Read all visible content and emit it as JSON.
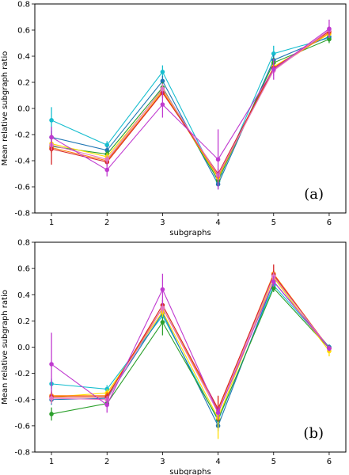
{
  "chart_data": [
    {
      "type": "line",
      "panel_label": "(a)",
      "xlabel": "subgraphs",
      "ylabel": "Mean relative subgraph ratio",
      "ylim": [
        -0.8,
        0.8
      ],
      "xlim": [
        0.7,
        6.3
      ],
      "x": [
        1,
        2,
        3,
        4,
        5,
        6
      ],
      "x_tick_labels": [
        "1",
        "2",
        "3",
        "4",
        "5",
        "6"
      ],
      "y_ticks": [
        -0.8,
        -0.6,
        -0.4,
        -0.2,
        0.0,
        0.2,
        0.4,
        0.6,
        0.8
      ],
      "y_tick_labels": [
        "-0.8",
        "-0.6",
        "-0.4",
        "-0.2",
        "0.0",
        "0.2",
        "0.4",
        "0.6",
        "0.8"
      ],
      "grid": false,
      "series": [
        {
          "color": "#17becf",
          "values": [
            -0.09,
            -0.28,
            0.28,
            -0.56,
            0.42,
            0.54
          ],
          "err": [
            0.1,
            0.03,
            0.05,
            0.04,
            0.06,
            0.03
          ]
        },
        {
          "color": "#1f77b4",
          "values": [
            -0.22,
            -0.32,
            0.21,
            -0.58,
            0.37,
            0.55
          ],
          "err": [
            0.05,
            0.03,
            0.04,
            0.04,
            0.04,
            0.03
          ]
        },
        {
          "color": "#2ca02c",
          "values": [
            -0.29,
            -0.35,
            0.16,
            -0.55,
            0.35,
            0.53
          ],
          "err": [
            0.04,
            0.03,
            0.04,
            0.04,
            0.04,
            0.03
          ]
        },
        {
          "color": "#ffdd00",
          "values": [
            -0.27,
            -0.37,
            0.14,
            -0.53,
            0.32,
            0.57
          ],
          "err": [
            0.04,
            0.03,
            0.04,
            0.04,
            0.04,
            0.03
          ]
        },
        {
          "color": "#ff7f0e",
          "values": [
            -0.3,
            -0.4,
            0.13,
            -0.52,
            0.3,
            0.58
          ],
          "err": [
            0.04,
            0.03,
            0.04,
            0.04,
            0.04,
            0.03
          ]
        },
        {
          "color": "#d62728",
          "values": [
            -0.31,
            -0.41,
            0.12,
            -0.5,
            0.31,
            0.59
          ],
          "err": [
            0.12,
            0.03,
            0.04,
            0.04,
            0.04,
            0.03
          ]
        },
        {
          "color": "#e377c2",
          "values": [
            -0.28,
            -0.39,
            0.15,
            -0.51,
            0.29,
            0.6
          ],
          "err": [
            0.04,
            0.03,
            0.04,
            0.04,
            0.04,
            0.03
          ]
        },
        {
          "color": "#c03ad0",
          "values": [
            -0.22,
            -0.47,
            0.03,
            -0.39,
            0.3,
            0.61
          ],
          "err": [
            0.08,
            0.05,
            0.1,
            0.23,
            0.08,
            0.07
          ]
        }
      ]
    },
    {
      "type": "line",
      "panel_label": "(b)",
      "xlabel": "subgraphs",
      "ylabel": "Mean relative subgraph ratio",
      "ylim": [
        -0.8,
        0.8
      ],
      "xlim": [
        0.7,
        6.3
      ],
      "x": [
        1,
        2,
        3,
        4,
        5,
        6
      ],
      "x_tick_labels": [
        "1",
        "2",
        "3",
        "4",
        "5",
        "6"
      ],
      "y_ticks": [
        -0.8,
        -0.6,
        -0.4,
        -0.2,
        0.0,
        0.2,
        0.4,
        0.6,
        0.8
      ],
      "y_tick_labels": [
        "-0.8",
        "-0.6",
        "-0.4",
        "-0.2",
        "0.0",
        "0.2",
        "0.4",
        "0.6",
        "0.8"
      ],
      "grid": false,
      "series": [
        {
          "color": "#17becf",
          "values": [
            -0.28,
            -0.32,
            0.24,
            -0.56,
            0.47,
            0.0
          ],
          "err": [
            0.04,
            0.03,
            0.04,
            0.04,
            0.03,
            0.02
          ]
        },
        {
          "color": "#1f77b4",
          "values": [
            -0.4,
            -0.39,
            0.26,
            -0.6,
            0.5,
            0.0
          ],
          "err": [
            0.04,
            0.03,
            0.04,
            0.04,
            0.03,
            0.02
          ]
        },
        {
          "color": "#2ca02c",
          "values": [
            -0.51,
            -0.43,
            0.19,
            -0.55,
            0.45,
            -0.01
          ],
          "err": [
            0.05,
            0.03,
            0.1,
            0.04,
            0.03,
            0.02
          ]
        },
        {
          "color": "#ffdd00",
          "values": [
            -0.38,
            -0.35,
            0.27,
            -0.54,
            0.53,
            -0.03
          ],
          "err": [
            0.04,
            0.03,
            0.04,
            0.16,
            0.03,
            0.04
          ]
        },
        {
          "color": "#ff7f0e",
          "values": [
            -0.37,
            -0.37,
            0.3,
            -0.48,
            0.56,
            -0.01
          ],
          "err": [
            0.04,
            0.03,
            0.04,
            0.04,
            0.03,
            0.02
          ]
        },
        {
          "color": "#d62728",
          "values": [
            -0.38,
            -0.38,
            0.32,
            -0.47,
            0.55,
            -0.01
          ],
          "err": [
            0.04,
            0.03,
            0.04,
            0.1,
            0.08,
            0.02
          ]
        },
        {
          "color": "#e377c2",
          "values": [
            -0.39,
            -0.4,
            0.3,
            -0.5,
            0.54,
            -0.01
          ],
          "err": [
            0.04,
            0.03,
            0.04,
            0.04,
            0.03,
            0.02
          ]
        },
        {
          "color": "#c03ad0",
          "values": [
            -0.13,
            -0.44,
            0.44,
            -0.5,
            0.5,
            -0.01
          ],
          "err": [
            0.24,
            0.06,
            0.12,
            0.05,
            0.04,
            0.02
          ]
        }
      ]
    }
  ]
}
